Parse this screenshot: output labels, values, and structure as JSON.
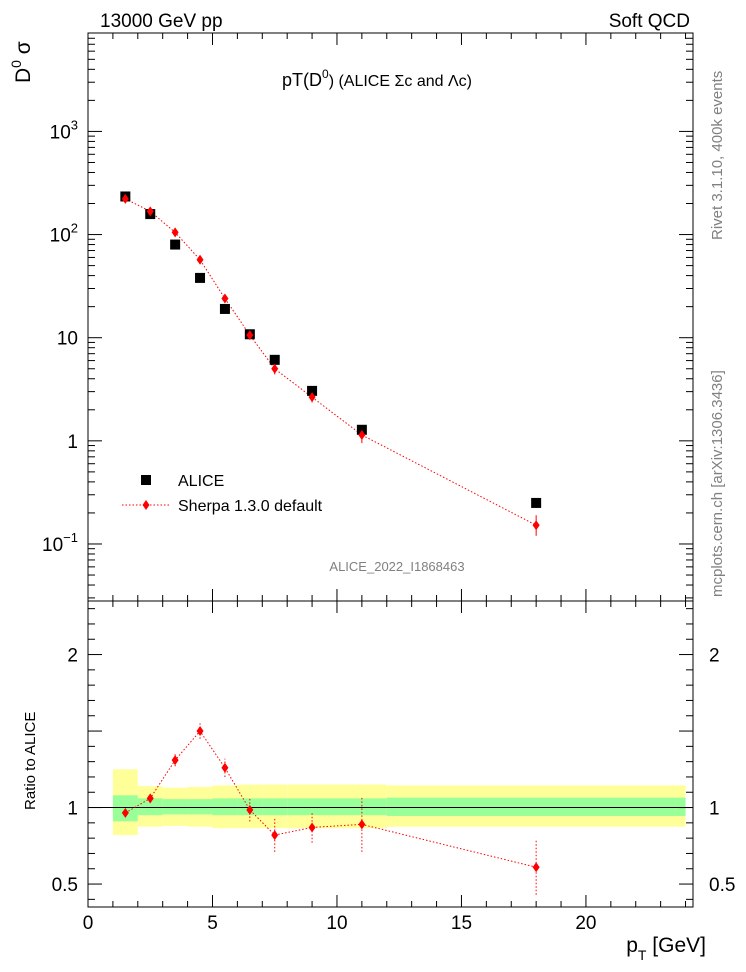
{
  "header": {
    "left": "13000 GeV pp",
    "right": "Soft QCD"
  },
  "side_labels": {
    "top": "Rivet 3.1.10,  400k events",
    "bottom": "mcplots.cern.ch [arXiv:1306.3436]"
  },
  "colors": {
    "data": "#000000",
    "mc": "#ff0000",
    "band_inner": "#99ff99",
    "band_outer": "#ffff99",
    "watermark": "#808080"
  },
  "chart_data": [
    {
      "type": "scatter",
      "title": "pT(D0) (ALICE Σc and Λc)",
      "title_parts": {
        "main": "pT(D",
        "sup": "0",
        "rest": ") (ALICE Σc and Λc)"
      },
      "ylabel": "D0 σ",
      "ylabel_parts": {
        "main": "D",
        "sup": "0",
        "rest": " σ"
      },
      "watermark": "ALICE_2022_I1868463",
      "yscale": "log",
      "ylim": [
        0.028,
        9000
      ],
      "xlim": [
        0,
        24.3
      ],
      "y_ticks": [
        {
          "value": 0.1,
          "base": "10",
          "exp": "−1"
        },
        {
          "value": 1,
          "text": "1"
        },
        {
          "value": 10,
          "text": "10"
        },
        {
          "value": 100,
          "base": "10",
          "exp": "2"
        },
        {
          "value": 1000,
          "base": "10",
          "exp": "3"
        }
      ],
      "legend": {
        "placement": "bottom-left",
        "entries": [
          "ALICE",
          "Sherpa 1.3.0 default"
        ]
      },
      "series": [
        {
          "name": "ALICE",
          "marker": "square",
          "points": [
            {
              "x": 1.5,
              "y": 234
            },
            {
              "x": 2.5,
              "y": 158
            },
            {
              "x": 3.5,
              "y": 80
            },
            {
              "x": 4.5,
              "y": 38
            },
            {
              "x": 5.5,
              "y": 19
            },
            {
              "x": 6.5,
              "y": 10.8
            },
            {
              "x": 7.5,
              "y": 6.1
            },
            {
              "x": 9,
              "y": 3.05
            },
            {
              "x": 11,
              "y": 1.28
            },
            {
              "x": 18,
              "y": 0.25
            }
          ]
        },
        {
          "name": "Sherpa 1.3.0 default",
          "marker": "diamond",
          "points": [
            {
              "x": 1.5,
              "y": 222,
              "ylo": 210,
              "yhi": 234
            },
            {
              "x": 2.5,
              "y": 168,
              "ylo": 158,
              "yhi": 178
            },
            {
              "x": 3.5,
              "y": 105,
              "ylo": 99,
              "yhi": 111
            },
            {
              "x": 4.5,
              "y": 57,
              "ylo": 53,
              "yhi": 61
            },
            {
              "x": 5.5,
              "y": 24,
              "ylo": 22,
              "yhi": 26
            },
            {
              "x": 6.5,
              "y": 10.6,
              "ylo": 9.8,
              "yhi": 11.4
            },
            {
              "x": 7.5,
              "y": 5.0,
              "ylo": 4.4,
              "yhi": 5.6
            },
            {
              "x": 9,
              "y": 2.65,
              "ylo": 2.35,
              "yhi": 2.95
            },
            {
              "x": 11,
              "y": 1.14,
              "ylo": 0.95,
              "yhi": 1.35
            },
            {
              "x": 18,
              "y": 0.152,
              "ylo": 0.12,
              "yhi": 0.19
            }
          ]
        }
      ]
    },
    {
      "type": "scatter",
      "ylabel": "Ratio to ALICE",
      "xlabel": "p_T [GeV]",
      "xlabel_parts": {
        "main": "p",
        "sub": "T",
        "rest": " [GeV]"
      },
      "ylim": [
        0.35,
        2.35
      ],
      "xlim": [
        0,
        24.3
      ],
      "x_ticks": [
        0,
        5,
        10,
        15,
        20
      ],
      "y_ticks": [
        0.5,
        1,
        2
      ],
      "reference_line": 1,
      "bands": [
        {
          "x0": 1.0,
          "x1": 2.0,
          "inner": [
            0.91,
            1.08
          ],
          "outer": [
            0.82,
            1.25
          ]
        },
        {
          "x0": 2.0,
          "x1": 3.0,
          "inner": [
            0.95,
            1.06
          ],
          "outer": [
            0.875,
            1.14
          ]
        },
        {
          "x0": 3.0,
          "x1": 4.0,
          "inner": [
            0.955,
            1.055
          ],
          "outer": [
            0.88,
            1.13
          ]
        },
        {
          "x0": 4.0,
          "x1": 5.0,
          "inner": [
            0.955,
            1.055
          ],
          "outer": [
            0.875,
            1.135
          ]
        },
        {
          "x0": 5.0,
          "x1": 6.0,
          "inner": [
            0.95,
            1.06
          ],
          "outer": [
            0.865,
            1.145
          ]
        },
        {
          "x0": 6.0,
          "x1": 7.0,
          "inner": [
            0.95,
            1.06
          ],
          "outer": [
            0.865,
            1.15
          ]
        },
        {
          "x0": 7.0,
          "x1": 8.0,
          "inner": [
            0.95,
            1.06
          ],
          "outer": [
            0.865,
            1.15
          ]
        },
        {
          "x0": 8.0,
          "x1": 10.0,
          "inner": [
            0.95,
            1.06
          ],
          "outer": [
            0.865,
            1.15
          ]
        },
        {
          "x0": 10.0,
          "x1": 12.0,
          "inner": [
            0.95,
            1.06
          ],
          "outer": [
            0.865,
            1.15
          ]
        },
        {
          "x0": 12.0,
          "x1": 24.0,
          "inner": [
            0.945,
            1.065
          ],
          "outer": [
            0.875,
            1.145
          ]
        }
      ],
      "series": [
        {
          "name": "Sherpa 1.3.0 default",
          "points": [
            {
              "x": 1.5,
              "y": 0.965,
              "ylo": 0.94,
              "yhi": 0.99
            },
            {
              "x": 2.5,
              "y": 1.06,
              "ylo": 1.03,
              "yhi": 1.09
            },
            {
              "x": 3.5,
              "y": 1.31,
              "ylo": 1.27,
              "yhi": 1.35
            },
            {
              "x": 4.5,
              "y": 1.5,
              "ylo": 1.45,
              "yhi": 1.55
            },
            {
              "x": 5.5,
              "y": 1.26,
              "ylo": 1.2,
              "yhi": 1.32
            },
            {
              "x": 6.5,
              "y": 0.985,
              "ylo": 0.91,
              "yhi": 1.06
            },
            {
              "x": 7.5,
              "y": 0.82,
              "ylo": 0.71,
              "yhi": 0.93
            },
            {
              "x": 9,
              "y": 0.87,
              "ylo": 0.77,
              "yhi": 0.97
            },
            {
              "x": 11,
              "y": 0.89,
              "ylo": 0.71,
              "yhi": 1.07
            },
            {
              "x": 18,
              "y": 0.61,
              "ylo": 0.43,
              "yhi": 0.79
            }
          ]
        }
      ]
    }
  ]
}
